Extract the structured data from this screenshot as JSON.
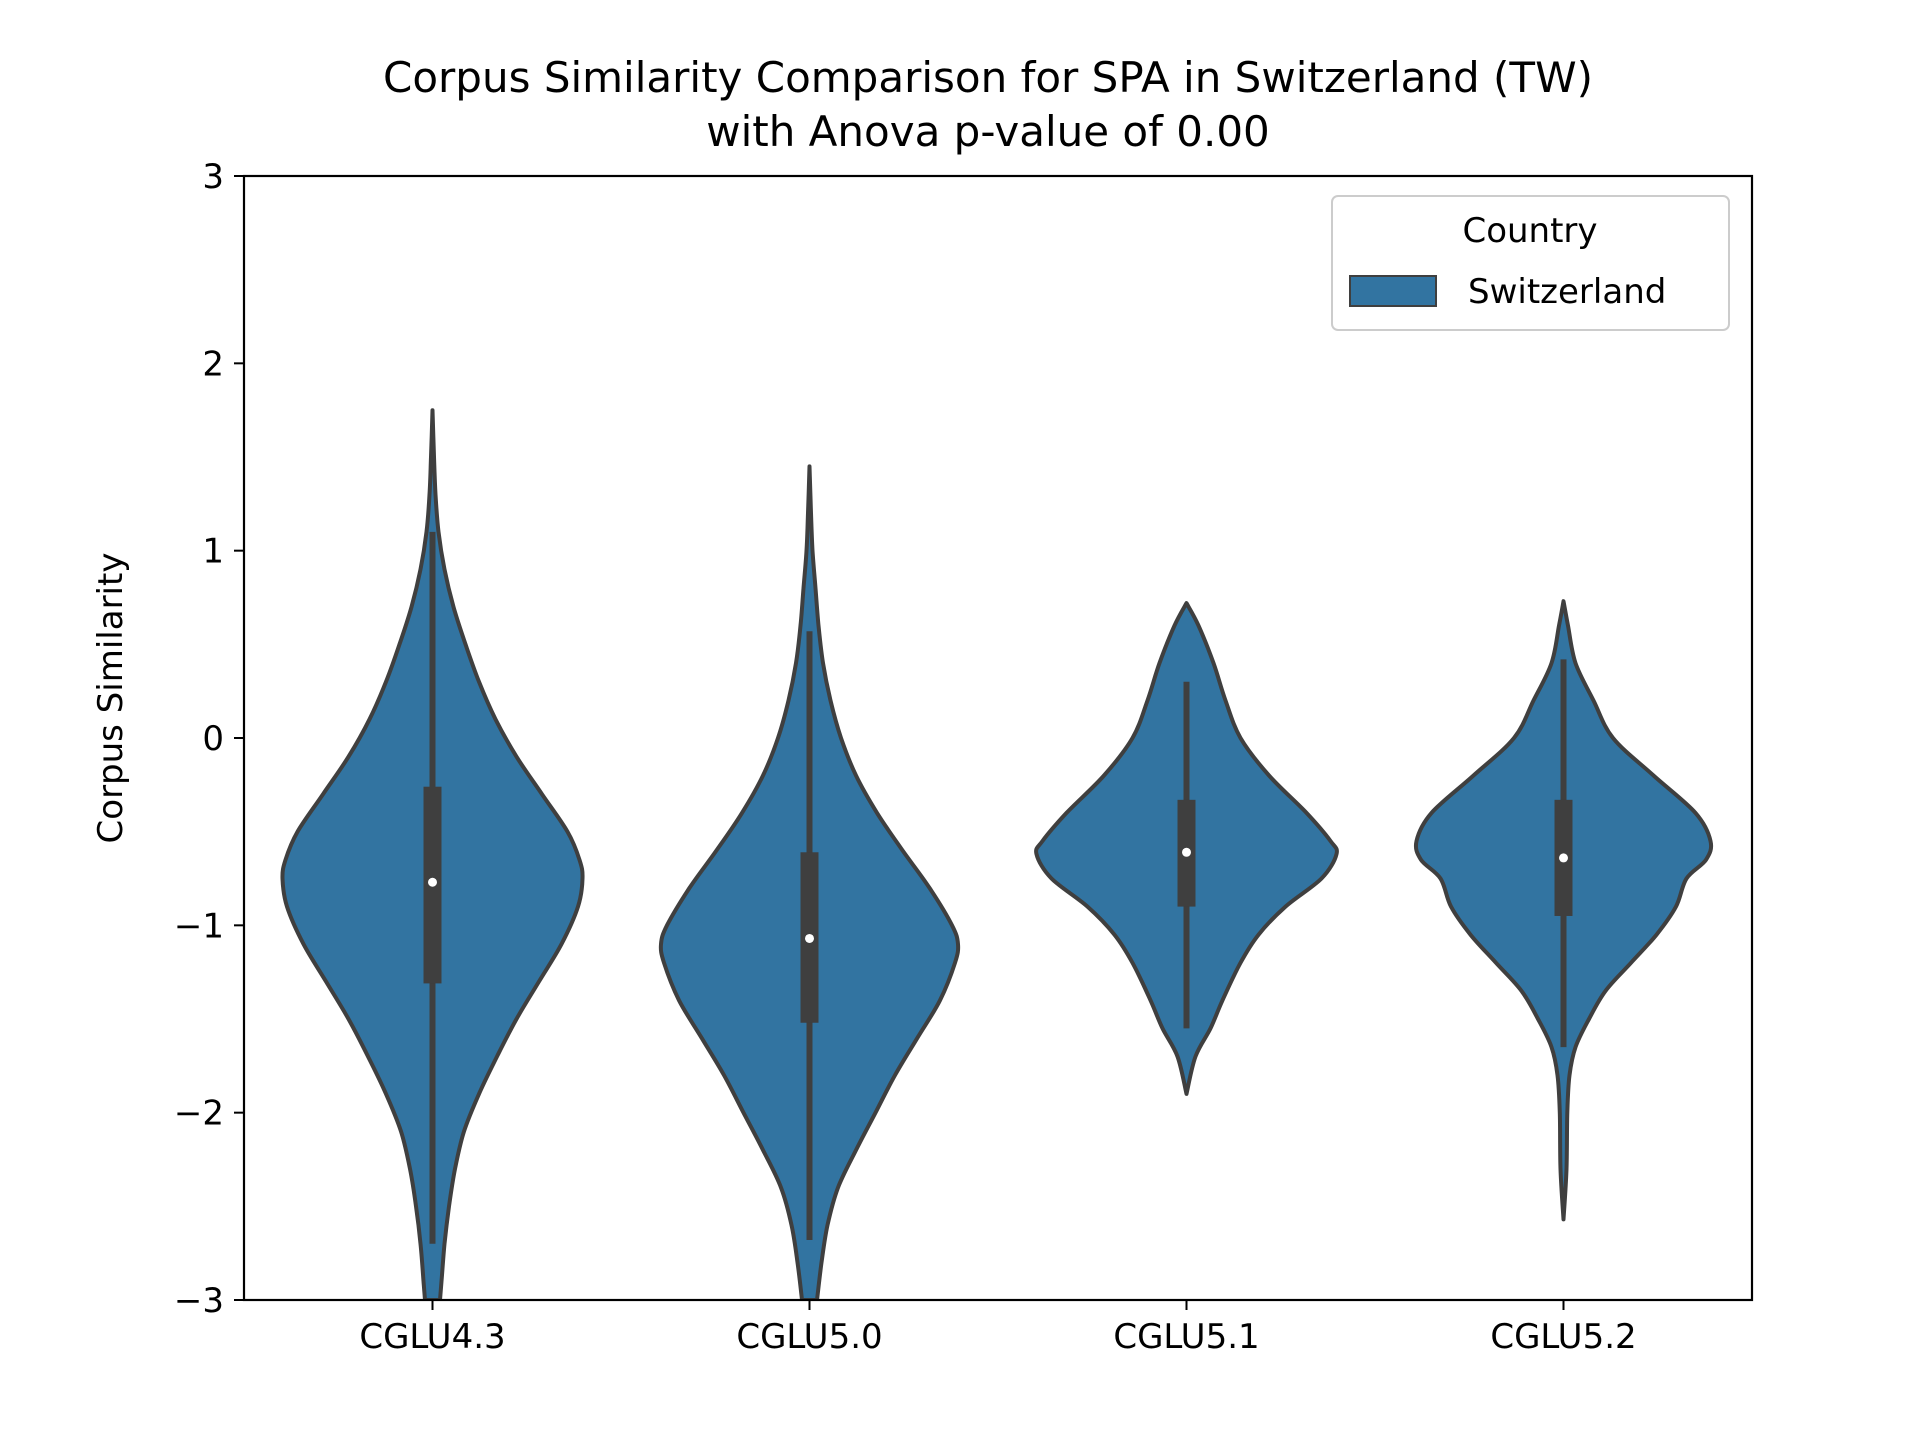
{
  "chart_data": {
    "type": "violin",
    "title": "Corpus Similarity Comparison for SPA in Switzerland (TW)",
    "subtitle": "with Anova p-value of 0.00",
    "xlabel": "",
    "ylabel": "Corpus Similarity",
    "ylim": [
      -3,
      3
    ],
    "yticks": [
      -3,
      -2,
      -1,
      0,
      1,
      2,
      3
    ],
    "ytick_labels": [
      "−3",
      "−2",
      "−1",
      "0",
      "1",
      "2",
      "3"
    ],
    "categories": [
      "CGLU4.3",
      "CGLU5.0",
      "CGLU5.1",
      "CGLU5.2"
    ],
    "grid": false,
    "legend": {
      "title": "Country",
      "position": "top-right",
      "entries": [
        "Switzerland"
      ]
    },
    "series": [
      {
        "name": "Switzerland",
        "color": "#3274a1",
        "violins": [
          {
            "category": "CGLU4.3",
            "median": -0.77,
            "q1": -1.31,
            "q3": -0.26,
            "whisker_low": -2.7,
            "whisker_high": 1.1,
            "min": -3.0,
            "max": 1.75,
            "density_profile": [
              [
                1.75,
                0.0
              ],
              [
                1.5,
                0.01
              ],
              [
                1.3,
                0.02
              ],
              [
                1.1,
                0.04
              ],
              [
                0.9,
                0.08
              ],
              [
                0.7,
                0.14
              ],
              [
                0.5,
                0.22
              ],
              [
                0.3,
                0.31
              ],
              [
                0.1,
                0.42
              ],
              [
                -0.1,
                0.56
              ],
              [
                -0.3,
                0.73
              ],
              [
                -0.5,
                0.9
              ],
              [
                -0.65,
                0.98
              ],
              [
                -0.75,
                1.0
              ],
              [
                -0.9,
                0.97
              ],
              [
                -1.1,
                0.86
              ],
              [
                -1.3,
                0.71
              ],
              [
                -1.5,
                0.56
              ],
              [
                -1.7,
                0.43
              ],
              [
                -1.9,
                0.31
              ],
              [
                -2.1,
                0.21
              ],
              [
                -2.3,
                0.15
              ],
              [
                -2.5,
                0.11
              ],
              [
                -2.7,
                0.08
              ],
              [
                -2.9,
                0.06
              ],
              [
                -3.0,
                0.05
              ]
            ]
          },
          {
            "category": "CGLU5.0",
            "median": -1.07,
            "q1": -1.52,
            "q3": -0.61,
            "whisker_low": -2.68,
            "whisker_high": 0.57,
            "min": -3.0,
            "max": 1.45,
            "density_profile": [
              [
                1.45,
                0.0
              ],
              [
                1.2,
                0.01
              ],
              [
                1.0,
                0.02
              ],
              [
                0.8,
                0.04
              ],
              [
                0.6,
                0.06
              ],
              [
                0.4,
                0.09
              ],
              [
                0.2,
                0.14
              ],
              [
                0.0,
                0.21
              ],
              [
                -0.2,
                0.31
              ],
              [
                -0.4,
                0.45
              ],
              [
                -0.6,
                0.62
              ],
              [
                -0.8,
                0.8
              ],
              [
                -1.0,
                0.95
              ],
              [
                -1.1,
                0.99
              ],
              [
                -1.2,
                0.97
              ],
              [
                -1.4,
                0.87
              ],
              [
                -1.6,
                0.72
              ],
              [
                -1.8,
                0.57
              ],
              [
                -2.0,
                0.44
              ],
              [
                -2.2,
                0.31
              ],
              [
                -2.4,
                0.19
              ],
              [
                -2.6,
                0.12
              ],
              [
                -2.8,
                0.08
              ],
              [
                -3.0,
                0.05
              ]
            ]
          },
          {
            "category": "CGLU5.1",
            "median": -0.61,
            "q1": -0.9,
            "q3": -0.33,
            "whisker_low": -1.55,
            "whisker_high": 0.3,
            "min": -1.9,
            "max": 0.72,
            "density_profile": [
              [
                0.72,
                0.0
              ],
              [
                0.6,
                0.08
              ],
              [
                0.4,
                0.18
              ],
              [
                0.2,
                0.26
              ],
              [
                0.0,
                0.36
              ],
              [
                -0.2,
                0.55
              ],
              [
                -0.4,
                0.8
              ],
              [
                -0.55,
                0.96
              ],
              [
                -0.62,
                1.0
              ],
              [
                -0.75,
                0.9
              ],
              [
                -0.9,
                0.66
              ],
              [
                -1.05,
                0.48
              ],
              [
                -1.2,
                0.36
              ],
              [
                -1.4,
                0.24
              ],
              [
                -1.55,
                0.16
              ],
              [
                -1.7,
                0.06
              ],
              [
                -1.9,
                0.0
              ]
            ]
          },
          {
            "category": "CGLU5.2",
            "median": -0.64,
            "q1": -0.95,
            "q3": -0.33,
            "whisker_low": -1.65,
            "whisker_high": 0.42,
            "min": -2.57,
            "max": 0.73,
            "density_profile": [
              [
                0.73,
                0.0
              ],
              [
                0.6,
                0.03
              ],
              [
                0.4,
                0.08
              ],
              [
                0.2,
                0.2
              ],
              [
                0.0,
                0.33
              ],
              [
                -0.2,
                0.6
              ],
              [
                -0.4,
                0.88
              ],
              [
                -0.55,
                0.98
              ],
              [
                -0.65,
                0.95
              ],
              [
                -0.75,
                0.82
              ],
              [
                -0.9,
                0.75
              ],
              [
                -1.05,
                0.62
              ],
              [
                -1.2,
                0.45
              ],
              [
                -1.35,
                0.28
              ],
              [
                -1.5,
                0.17
              ],
              [
                -1.65,
                0.08
              ],
              [
                -1.8,
                0.04
              ],
              [
                -2.0,
                0.025
              ],
              [
                -2.3,
                0.02
              ],
              [
                -2.57,
                0.0
              ]
            ]
          }
        ]
      }
    ]
  }
}
